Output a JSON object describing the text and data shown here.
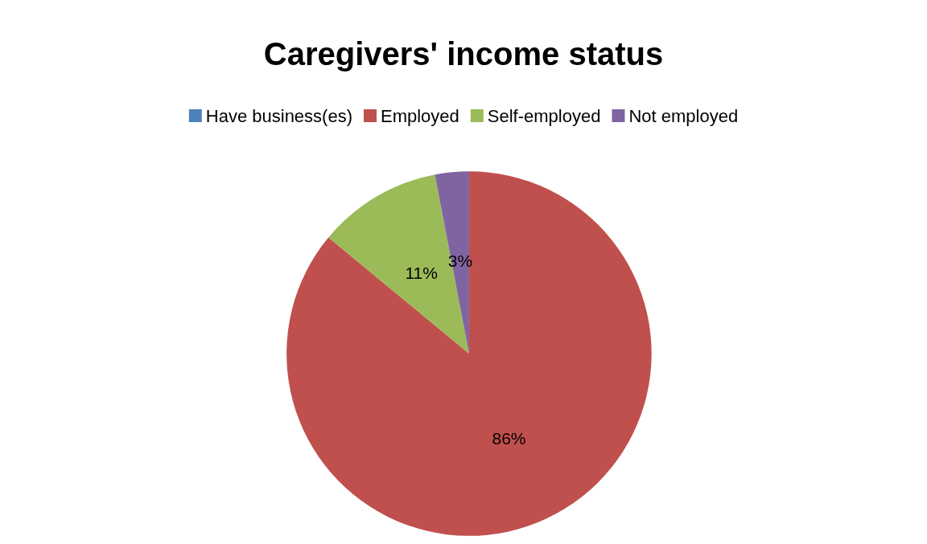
{
  "chart_data": {
    "type": "pie",
    "title": "Caregivers' income status",
    "categories": [
      "Have business(es)",
      "Employed",
      "Self-employed",
      "Not employed"
    ],
    "values": [
      0,
      86,
      11,
      3
    ],
    "colors": [
      "#4f81bd",
      "#c0504d",
      "#9bbb59",
      "#8064a2"
    ],
    "value_labels": [
      null,
      "86%",
      "11%",
      "3%"
    ],
    "legend": "top"
  }
}
